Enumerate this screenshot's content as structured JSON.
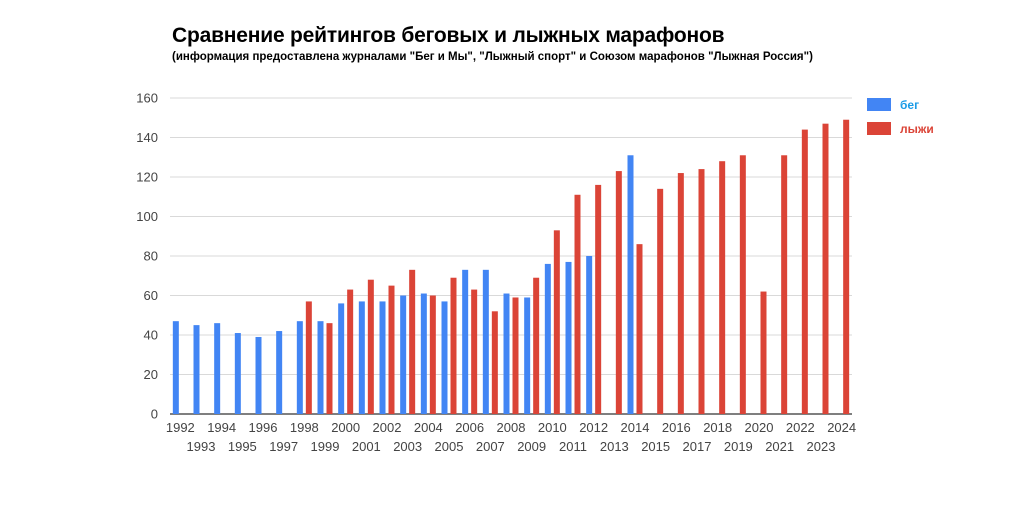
{
  "chart_data": {
    "type": "bar",
    "title": "Сравнение рейтингов беговых и лыжных марафонов",
    "subtitle": "(информация предоставлена журналами \"Бег и Мы\", \"Лыжный спорт\" и Союзом марафонов \"Лыжная Россия\")",
    "categories": [
      "1992",
      "1993",
      "1994",
      "1995",
      "1996",
      "1997",
      "1998",
      "1999",
      "2000",
      "2001",
      "2002",
      "2003",
      "2004",
      "2005",
      "2006",
      "2007",
      "2008",
      "2009",
      "2010",
      "2011",
      "2012",
      "2013",
      "2014",
      "2015",
      "2016",
      "2017",
      "2018",
      "2019",
      "2020",
      "2021",
      "2022",
      "2023",
      "2024"
    ],
    "series": [
      {
        "name": "бег",
        "color": "#4285f4",
        "values": [
          47,
          45,
          46,
          41,
          39,
          42,
          47,
          47,
          56,
          57,
          57,
          60,
          61,
          57,
          73,
          73,
          61,
          59,
          76,
          77,
          80,
          null,
          131,
          null,
          null,
          null,
          null,
          null,
          null,
          null,
          null,
          null,
          null
        ]
      },
      {
        "name": "лыжи",
        "color": "#db4437",
        "values": [
          null,
          null,
          null,
          null,
          null,
          null,
          57,
          46,
          63,
          68,
          65,
          73,
          60,
          69,
          63,
          52,
          59,
          69,
          93,
          111,
          116,
          123,
          86,
          114,
          122,
          124,
          128,
          131,
          62,
          131,
          144,
          147,
          149
        ]
      }
    ],
    "ylim": [
      0,
      160
    ],
    "yticks": [
      0,
      20,
      40,
      60,
      80,
      100,
      120,
      140,
      160
    ],
    "xlabel": "",
    "ylabel": "",
    "grid": true,
    "legend": "right"
  },
  "legend_text_colors": {
    "бег": "#1a9be6",
    "лыжи": "#db4437"
  }
}
